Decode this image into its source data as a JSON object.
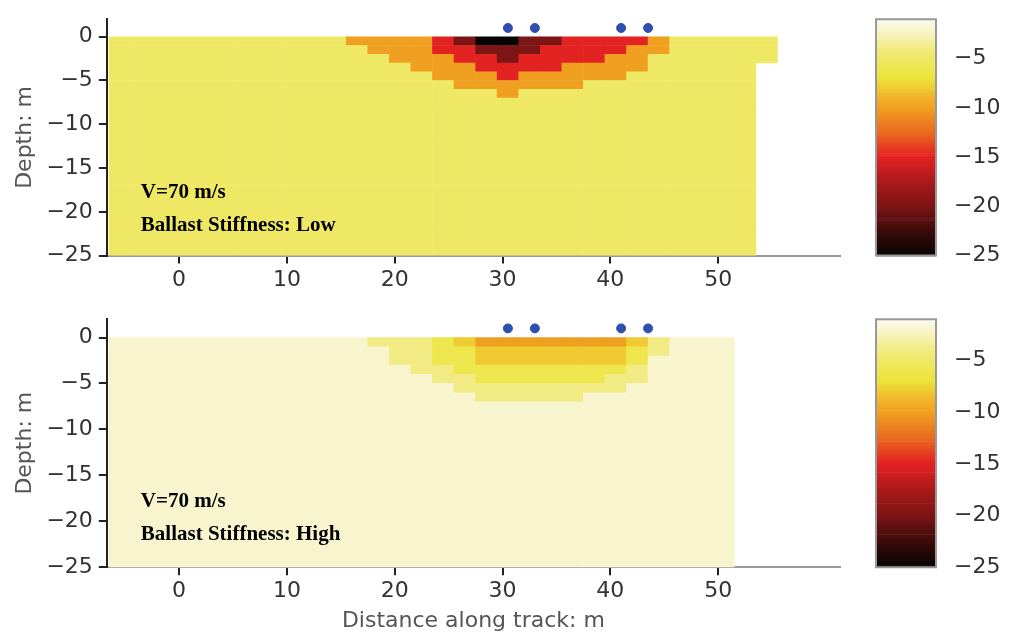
{
  "chart_data": [
    {
      "type": "heatmap",
      "ylabel": "Depth: m",
      "annotations": [
        "V=70 m/s",
        "Ballast Stiffness: Low"
      ],
      "legend": false,
      "grid": false,
      "xlim": [
        -6.7,
        61.3
      ],
      "xticks": [
        0,
        10,
        20,
        30,
        40,
        50
      ],
      "ylim": [
        -25,
        2
      ],
      "yticks": [
        {
          "value": 0,
          "label": "0"
        },
        {
          "value": -5,
          "label": "−5"
        },
        {
          "value": -10,
          "label": "−10"
        },
        {
          "value": -15,
          "label": "−15"
        },
        {
          "value": -20,
          "label": "−20"
        },
        {
          "value": -25,
          "label": "−25"
        }
      ],
      "clim": [
        -25,
        -1
      ],
      "cticks": [
        {
          "value": -5,
          "label": "−5"
        },
        {
          "value": -10,
          "label": "−10"
        },
        {
          "value": -15,
          "label": "−15"
        },
        {
          "value": -20,
          "label": "−20"
        },
        {
          "value": -25,
          "label": "−25"
        }
      ],
      "x": [
        -5.5,
        -3.5,
        -1.5,
        0.5,
        2.5,
        4.5,
        6.5,
        8.5,
        10.5,
        12.5,
        14.5,
        16.5,
        18.5,
        20.5,
        22.5,
        24.5,
        26.5,
        28.5,
        30.5,
        32.5,
        34.5,
        36.5,
        38.5,
        40.5,
        42.5,
        44.5,
        46.5,
        48.5,
        50.5,
        52.5,
        54.5
      ],
      "y": [
        -0.5,
        -1.5,
        -2.5,
        -3.5,
        -4.5,
        -5.5,
        -6.5,
        -7.5,
        -9.5,
        -14.5,
        -19.5,
        -24.5
      ],
      "cells": [
        [
          -5,
          -5,
          -5,
          -5,
          -5,
          -5,
          -5,
          -5,
          -5,
          -5,
          -5,
          -10,
          -10,
          -10,
          -10,
          -15,
          -20,
          -25,
          -25,
          -20,
          -20,
          -15,
          -15,
          -15,
          -15,
          -10,
          -5,
          -5,
          -5,
          -5,
          -5
        ],
        [
          -5,
          -5,
          -5,
          -5,
          -5,
          -5,
          -5,
          -5,
          -5,
          -5,
          -5,
          -5,
          -10,
          -10,
          -10,
          -15,
          -15,
          -20,
          -20,
          -20,
          -15,
          -15,
          -15,
          -15,
          -10,
          -10,
          -5,
          -5,
          -5,
          -5,
          -5
        ],
        [
          -5,
          -5,
          -5,
          -5,
          -5,
          -5,
          -5,
          -5,
          -5,
          -5,
          -5,
          -5,
          -5,
          -10,
          -10,
          -10,
          -15,
          -15,
          -20,
          -15,
          -15,
          -15,
          -15,
          -10,
          -10,
          -5,
          -5,
          -5,
          -5,
          -5,
          -5
        ],
        [
          -5,
          -5,
          -5,
          -5,
          -5,
          -5,
          -5,
          -5,
          -5,
          -5,
          -5,
          -5,
          -5,
          -5,
          -10,
          -10,
          -10,
          -15,
          -15,
          -15,
          -15,
          -10,
          -10,
          -10,
          -10,
          -5,
          -5,
          -5,
          -5,
          -5,
          null
        ],
        [
          -5,
          -5,
          -5,
          -5,
          -5,
          -5,
          -5,
          -5,
          -5,
          -5,
          -5,
          -5,
          -5,
          -5,
          -5,
          -10,
          -10,
          -10,
          -15,
          -10,
          -10,
          -10,
          -10,
          -10,
          -5,
          -5,
          -5,
          -5,
          -5,
          -5,
          null
        ],
        [
          -5,
          -5,
          -5,
          -5,
          -5,
          -5,
          -5,
          -5,
          -5,
          -5,
          -5,
          -5,
          -5,
          -5,
          -5,
          -5,
          -10,
          -10,
          -10,
          -10,
          -10,
          -10,
          -5,
          -5,
          -5,
          -5,
          -5,
          -5,
          -5,
          -5,
          null
        ],
        [
          -5,
          -5,
          -5,
          -5,
          -5,
          -5,
          -5,
          -5,
          -5,
          -5,
          -5,
          -5,
          -5,
          -5,
          -5,
          -5,
          -5,
          -5,
          -10,
          -5,
          -5,
          -5,
          -5,
          -5,
          -5,
          -5,
          -5,
          -5,
          -5,
          -5,
          null
        ],
        [
          -5,
          -5,
          -5,
          -5,
          -5,
          -5,
          -5,
          -5,
          -5,
          -5,
          -5,
          -5,
          -5,
          -5,
          -5,
          -5,
          -5,
          -5,
          -5,
          -5,
          -5,
          -5,
          -5,
          -5,
          -5,
          -5,
          -5,
          -5,
          -5,
          -5,
          null
        ],
        [
          -5,
          -5,
          -5,
          -5,
          -5,
          -5,
          -5,
          -5,
          -5,
          -5,
          -5,
          -5,
          -5,
          -5,
          -5,
          -5,
          -5,
          -5,
          -5,
          -5,
          -5,
          -5,
          -5,
          -5,
          -5,
          -5,
          -5,
          -5,
          -5,
          -5,
          null
        ],
        [
          -5,
          -5,
          -5,
          -5,
          -5,
          -5,
          -5,
          -5,
          -5,
          -5,
          -5,
          -5,
          -5,
          -5,
          -5,
          -5,
          -5,
          -5,
          -5,
          -5,
          -5,
          -5,
          -5,
          -5,
          -5,
          -5,
          -5,
          -5,
          -5,
          -5,
          null
        ],
        [
          -5,
          -5,
          -5,
          -5,
          -5,
          -5,
          -5,
          -5,
          -5,
          -5,
          -5,
          -5,
          -5,
          -5,
          -5,
          -5,
          -5,
          -5,
          -5,
          -5,
          -5,
          -5,
          -5,
          -5,
          -5,
          -5,
          -5,
          -5,
          -5,
          -5,
          null
        ],
        [
          -5,
          -5,
          -5,
          -5,
          -5,
          -5,
          -5,
          -5,
          -5,
          -5,
          -5,
          -5,
          -5,
          -5,
          -5,
          -5,
          -5,
          -5,
          -5,
          -5,
          -5,
          -5,
          -5,
          -5,
          -5,
          -5,
          -5,
          -5,
          -5,
          -5,
          null
        ]
      ],
      "series": [
        {
          "type": "scatter",
          "marker": "circle",
          "color": "#2f4fb0",
          "x": [
            30.5,
            33,
            41,
            43.5
          ],
          "values": [
            1,
            1,
            1,
            1
          ]
        }
      ]
    },
    {
      "type": "heatmap",
      "xlabel": "Distance along track: m",
      "ylabel": "Depth: m",
      "annotations": [
        "V=70 m/s",
        "Ballast Stiffness: High"
      ],
      "legend": false,
      "grid": false,
      "xlim": [
        -6.7,
        61.3
      ],
      "xticks": [
        0,
        10,
        20,
        30,
        40,
        50
      ],
      "ylim": [
        -25,
        2
      ],
      "yticks": [
        {
          "value": 0,
          "label": "0"
        },
        {
          "value": -5,
          "label": "−5"
        },
        {
          "value": -10,
          "label": "−10"
        },
        {
          "value": -15,
          "label": "−15"
        },
        {
          "value": -20,
          "label": "−20"
        },
        {
          "value": -25,
          "label": "−25"
        }
      ],
      "clim": [
        -25,
        -1
      ],
      "cticks": [
        {
          "value": -5,
          "label": "−5"
        },
        {
          "value": -10,
          "label": "−10"
        },
        {
          "value": -15,
          "label": "−15"
        },
        {
          "value": -20,
          "label": "−20"
        },
        {
          "value": -25,
          "label": "−25"
        }
      ],
      "x": [
        -5.5,
        -3.5,
        -1.5,
        0.5,
        2.5,
        4.5,
        6.5,
        8.5,
        10.5,
        12.5,
        14.5,
        16.5,
        18.5,
        20.5,
        22.5,
        24.5,
        26.5,
        28.5,
        30.5,
        32.5,
        34.5,
        36.5,
        38.5,
        40.5,
        42.5,
        44.5,
        46.5,
        48.5,
        50.5
      ],
      "y": [
        -0.5,
        -1.5,
        -2.5,
        -3.5,
        -4.5,
        -5.5,
        -6.5,
        -7.5,
        -9.5,
        -14.5,
        -19.5,
        -24.5
      ],
      "cells": [
        [
          -2,
          -2,
          -2,
          -2,
          -2,
          -2,
          -2,
          -2,
          -2,
          -2,
          -2,
          -2,
          -4,
          -4,
          -4,
          -6,
          -8,
          -10,
          -10,
          -10,
          -10,
          -10,
          -10,
          -10,
          -8,
          -4,
          -2,
          -2,
          -2
        ],
        [
          -2,
          -2,
          -2,
          -2,
          -2,
          -2,
          -2,
          -2,
          -2,
          -2,
          -2,
          -2,
          -2,
          -4,
          -4,
          -6,
          -6,
          -8,
          -8,
          -8,
          -8,
          -8,
          -8,
          -8,
          -6,
          -4,
          -2,
          -2,
          -2
        ],
        [
          -2,
          -2,
          -2,
          -2,
          -2,
          -2,
          -2,
          -2,
          -2,
          -2,
          -2,
          -2,
          -2,
          -4,
          -4,
          -6,
          -6,
          -8,
          -8,
          -8,
          -8,
          -8,
          -8,
          -8,
          -6,
          -2,
          -2,
          -2,
          -2
        ],
        [
          -2,
          -2,
          -2,
          -2,
          -2,
          -2,
          -2,
          -2,
          -2,
          -2,
          -2,
          -2,
          -2,
          -2,
          -4,
          -4,
          -6,
          -6,
          -6,
          -6,
          -6,
          -6,
          -6,
          -6,
          -4,
          -2,
          -2,
          -2,
          -2
        ],
        [
          -2,
          -2,
          -2,
          -2,
          -2,
          -2,
          -2,
          -2,
          -2,
          -2,
          -2,
          -2,
          -2,
          -2,
          -2,
          -4,
          -4,
          -6,
          -6,
          -6,
          -6,
          -6,
          -6,
          -4,
          -4,
          -2,
          -2,
          -2,
          -2
        ],
        [
          -2,
          -2,
          -2,
          -2,
          -2,
          -2,
          -2,
          -2,
          -2,
          -2,
          -2,
          -2,
          -2,
          -2,
          -2,
          -2,
          -4,
          -4,
          -4,
          -4,
          -4,
          -4,
          -4,
          -4,
          -2,
          -2,
          -2,
          -2,
          -2
        ],
        [
          -2,
          -2,
          -2,
          -2,
          -2,
          -2,
          -2,
          -2,
          -2,
          -2,
          -2,
          -2,
          -2,
          -2,
          -2,
          -2,
          -2,
          -4,
          -4,
          -4,
          -4,
          -4,
          -2,
          -2,
          -2,
          -2,
          -2,
          -2,
          -2
        ],
        [
          -2,
          -2,
          -2,
          -2,
          -2,
          -2,
          -2,
          -2,
          -2,
          -2,
          -2,
          -2,
          -2,
          -2,
          -2,
          -2,
          -2,
          -2,
          -2,
          -2,
          -2,
          -2,
          -2,
          -2,
          -2,
          -2,
          -2,
          -2,
          -2
        ],
        [
          -2,
          -2,
          -2,
          -2,
          -2,
          -2,
          -2,
          -2,
          -2,
          -2,
          -2,
          -2,
          -2,
          -2,
          -2,
          -2,
          -2,
          -2,
          -2,
          -2,
          -2,
          -2,
          -2,
          -2,
          -2,
          -2,
          -2,
          -2,
          -2
        ],
        [
          -2,
          -2,
          -2,
          -2,
          -2,
          -2,
          -2,
          -2,
          -2,
          -2,
          -2,
          -2,
          -2,
          -2,
          -2,
          -2,
          -2,
          -2,
          -2,
          -2,
          -2,
          -2,
          -2,
          -2,
          -2,
          -2,
          -2,
          -2,
          -2
        ],
        [
          -2,
          -2,
          -2,
          -2,
          -2,
          -2,
          -2,
          -2,
          -2,
          -2,
          -2,
          -2,
          -2,
          -2,
          -2,
          -2,
          -2,
          -2,
          -2,
          -2,
          -2,
          -2,
          -2,
          -2,
          -2,
          -2,
          -2,
          -2,
          -2
        ],
        [
          -2,
          -2,
          -2,
          -2,
          -2,
          -2,
          -2,
          -2,
          -2,
          -2,
          -2,
          -2,
          -2,
          -2,
          -2,
          -2,
          -2,
          -2,
          -2,
          -2,
          -2,
          -2,
          -2,
          -2,
          -2,
          -2,
          -2,
          -2,
          -2
        ]
      ],
      "series": [
        {
          "type": "scatter",
          "marker": "circle",
          "color": "#2f4fb0",
          "x": [
            30.5,
            33,
            41,
            43.5
          ],
          "values": [
            1,
            1,
            1,
            1
          ]
        }
      ]
    }
  ]
}
